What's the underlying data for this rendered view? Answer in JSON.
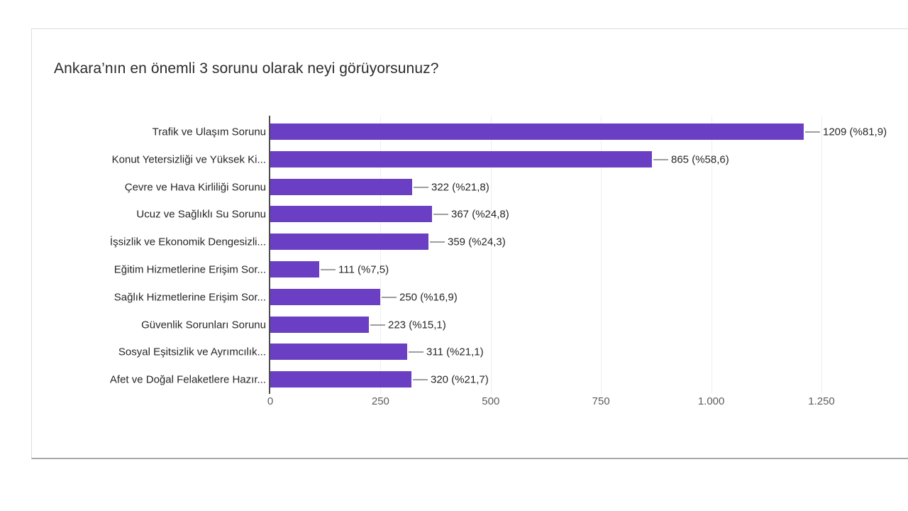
{
  "card": {
    "border_color": "#dcdcdc",
    "border_bottom_color": "#a9a9a9",
    "background": "#ffffff"
  },
  "chart_data": {
    "type": "bar",
    "orientation": "horizontal",
    "title": "Ankara’nın en önemli 3 sorunu olarak neyi görüyorsunuz?",
    "categories": [
      "Trafik ve Ulaşım Sorunu",
      "Konut Yetersizliği ve Yüksek Ki...",
      "Çevre ve Hava Kirliliği Sorunu",
      "Ucuz ve Sağlıklı Su Sorunu",
      "İşsizlik ve Ekonomik Dengesizli...",
      "Eğitim Hizmetlerine Erişim Sor...",
      "Sağlık Hizmetlerine Erişim Sor...",
      "Güvenlik Sorunları Sorunu",
      "Sosyal Eşitsizlik ve Ayrımcılık...",
      "Afet ve Doğal Felaketlere Hazır..."
    ],
    "values": [
      1209,
      865,
      322,
      367,
      359,
      111,
      250,
      223,
      311,
      320
    ],
    "percentages": [
      81.9,
      58.6,
      21.8,
      24.8,
      24.3,
      7.5,
      16.9,
      15.1,
      21.1,
      21.7
    ],
    "value_labels": [
      "1209 (%81,9)",
      "865 (%58,6)",
      "322 (%21,8)",
      "367 (%24,8)",
      "359 (%24,3)",
      "111 (%7,5)",
      "250 (%16,9)",
      "223 (%15,1)",
      "311 (%21,1)",
      "320 (%21,7)"
    ],
    "x_ticks": [
      "0",
      "250",
      "500",
      "750",
      "1.000",
      "1.250"
    ],
    "x_tick_values": [
      0,
      250,
      500,
      750,
      1000,
      1250
    ],
    "xlim": [
      0,
      1250
    ],
    "grid": true,
    "legend": false,
    "bar_color": "#6b3fc3",
    "callout_color": "#9e9e9e",
    "axis_color": "#4d4d4d",
    "gridline_color": "#eeeeee",
    "label_color": "#262626",
    "tick_color": "#5c5c5c"
  }
}
